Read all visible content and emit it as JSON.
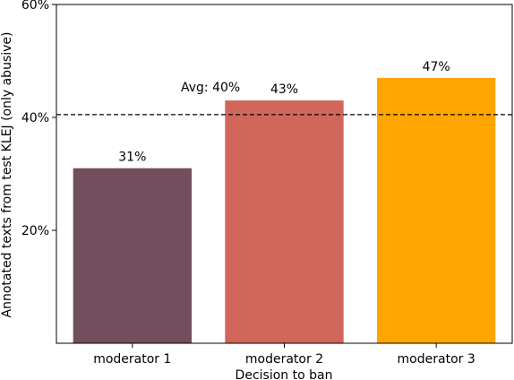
{
  "chart_data": {
    "type": "bar",
    "categories": [
      "moderator 1",
      "moderator 2",
      "moderator 3"
    ],
    "values": [
      31,
      43,
      47
    ],
    "value_labels": [
      "31%",
      "43%",
      "47%"
    ],
    "colors": [
      "#714F5E",
      "#D1665A",
      "#FFA500"
    ],
    "xlabel": "Decision to ban",
    "ylabel": "Annotated texts from test KLEJ (only abusive)",
    "ylim": [
      0,
      60
    ],
    "yticks": [
      20,
      40,
      60
    ],
    "ytick_labels": [
      "20%",
      "40%",
      "60%"
    ],
    "reference_line": {
      "value": 40.5,
      "label": "Avg: 40%",
      "style": "dashed"
    },
    "grid": false
  }
}
